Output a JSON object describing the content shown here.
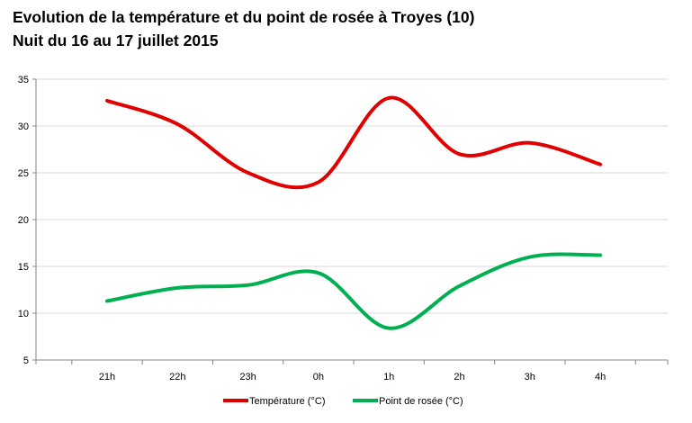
{
  "chart_data": {
    "type": "line",
    "title": "Evolution de la température et du point de rosée à Troyes (10)",
    "subtitle": "Nuit du 16 au 17 juillet 2015",
    "categories": [
      "21h",
      "22h",
      "23h",
      "0h",
      "1h",
      "2h",
      "3h",
      "4h"
    ],
    "ylim": [
      5,
      35
    ],
    "yticks": [
      5,
      10,
      15,
      20,
      25,
      30,
      35
    ],
    "grid": true,
    "legend_position": "bottom",
    "series": [
      {
        "name": "Température (°C)",
        "color": "#e00000",
        "values": [
          32.7,
          30.2,
          25.0,
          24.0,
          33.0,
          27.0,
          28.2,
          25.9
        ]
      },
      {
        "name": "Point de rosée (°C)",
        "color": "#00b050",
        "values": [
          11.3,
          12.7,
          13.0,
          14.3,
          8.4,
          12.9,
          16.0,
          16.2
        ]
      }
    ]
  }
}
